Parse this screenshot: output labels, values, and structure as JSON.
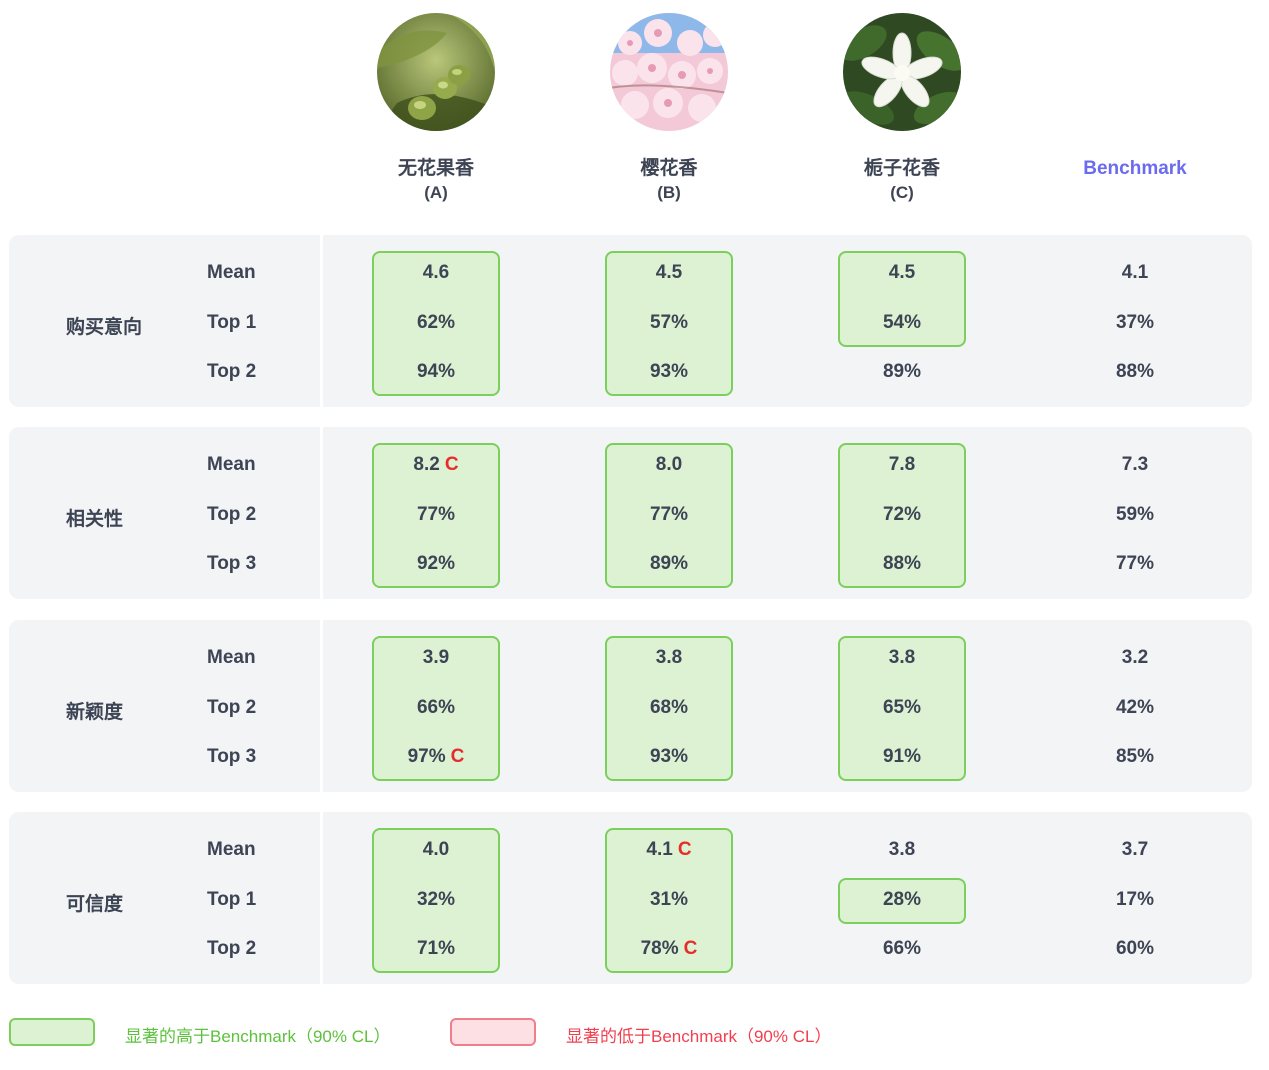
{
  "chart_data": {
    "type": "table",
    "columns": [
      {
        "name": "无花果香",
        "code": "(A)",
        "image": "fig-icon"
      },
      {
        "name": "樱花香",
        "code": "(B)",
        "image": "cherry-blossom-icon"
      },
      {
        "name": "栀子花香",
        "code": "(C)",
        "image": "gardenia-icon"
      },
      {
        "name": "Benchmark",
        "code": "",
        "image": ""
      }
    ],
    "groups": [
      {
        "label": "购买意向",
        "rows": [
          {
            "metric": "Mean",
            "values": [
              "4.6",
              "4.5",
              "4.5",
              "4.1"
            ],
            "marks": [
              "",
              "",
              "",
              ""
            ],
            "highlight": [
              true,
              true,
              true,
              false
            ]
          },
          {
            "metric": "Top 1",
            "values": [
              "62%",
              "57%",
              "54%",
              "37%"
            ],
            "marks": [
              "",
              "",
              "",
              ""
            ],
            "highlight": [
              true,
              true,
              true,
              false
            ]
          },
          {
            "metric": "Top 2",
            "values": [
              "94%",
              "93%",
              "89%",
              "88%"
            ],
            "marks": [
              "",
              "",
              "",
              ""
            ],
            "highlight": [
              true,
              true,
              false,
              false
            ]
          }
        ]
      },
      {
        "label": "相关性",
        "rows": [
          {
            "metric": "Mean",
            "values": [
              "8.2",
              "8.0",
              "7.8",
              "7.3"
            ],
            "marks": [
              "C",
              "",
              "",
              ""
            ],
            "highlight": [
              true,
              true,
              true,
              false
            ]
          },
          {
            "metric": "Top 2",
            "values": [
              "77%",
              "77%",
              "72%",
              "59%"
            ],
            "marks": [
              "",
              "",
              "",
              ""
            ],
            "highlight": [
              true,
              true,
              true,
              false
            ]
          },
          {
            "metric": "Top 3",
            "values": [
              "92%",
              "89%",
              "88%",
              "77%"
            ],
            "marks": [
              "",
              "",
              "",
              ""
            ],
            "highlight": [
              true,
              true,
              true,
              false
            ]
          }
        ]
      },
      {
        "label": "新颖度",
        "rows": [
          {
            "metric": "Mean",
            "values": [
              "3.9",
              "3.8",
              "3.8",
              "3.2"
            ],
            "marks": [
              "",
              "",
              "",
              ""
            ],
            "highlight": [
              true,
              true,
              true,
              false
            ]
          },
          {
            "metric": "Top 2",
            "values": [
              "66%",
              "68%",
              "65%",
              "42%"
            ],
            "marks": [
              "",
              "",
              "",
              ""
            ],
            "highlight": [
              true,
              true,
              true,
              false
            ]
          },
          {
            "metric": "Top 3",
            "values": [
              "97%",
              "93%",
              "91%",
              "85%"
            ],
            "marks": [
              "C",
              "",
              "",
              ""
            ],
            "highlight": [
              true,
              true,
              true,
              false
            ]
          }
        ]
      },
      {
        "label": "可信度",
        "rows": [
          {
            "metric": "Mean",
            "values": [
              "4.0",
              "4.1",
              "3.8",
              "3.7"
            ],
            "marks": [
              "",
              "C",
              "",
              ""
            ],
            "highlight": [
              true,
              true,
              false,
              false
            ]
          },
          {
            "metric": "Top 1",
            "values": [
              "32%",
              "31%",
              "28%",
              "17%"
            ],
            "marks": [
              "",
              "",
              "",
              ""
            ],
            "highlight": [
              true,
              true,
              true,
              false
            ]
          },
          {
            "metric": "Top 2",
            "values": [
              "71%",
              "78%",
              "66%",
              "60%"
            ],
            "marks": [
              "",
              "C",
              "",
              ""
            ],
            "highlight": [
              true,
              true,
              false,
              false
            ]
          }
        ]
      }
    ],
    "legend": [
      {
        "label": "显著的高于Benchmark（90% CL）",
        "fill": "#dcf2d3",
        "border": "#7ccf5c",
        "text_color": "#5cc13c"
      },
      {
        "label": "显著的低于Benchmark（90% CL）",
        "fill": "#fde0e3",
        "border": "#f07f8c",
        "text_color": "#f0404f"
      }
    ]
  },
  "colors": {
    "benchmark_header": "#6b6bf0",
    "panel_bg": "#f3f4f6",
    "highlight_fill": "#dcf2d3",
    "highlight_border": "#7ccf5c",
    "mark_color": "#e82c2c",
    "text": "#3d4454"
  }
}
